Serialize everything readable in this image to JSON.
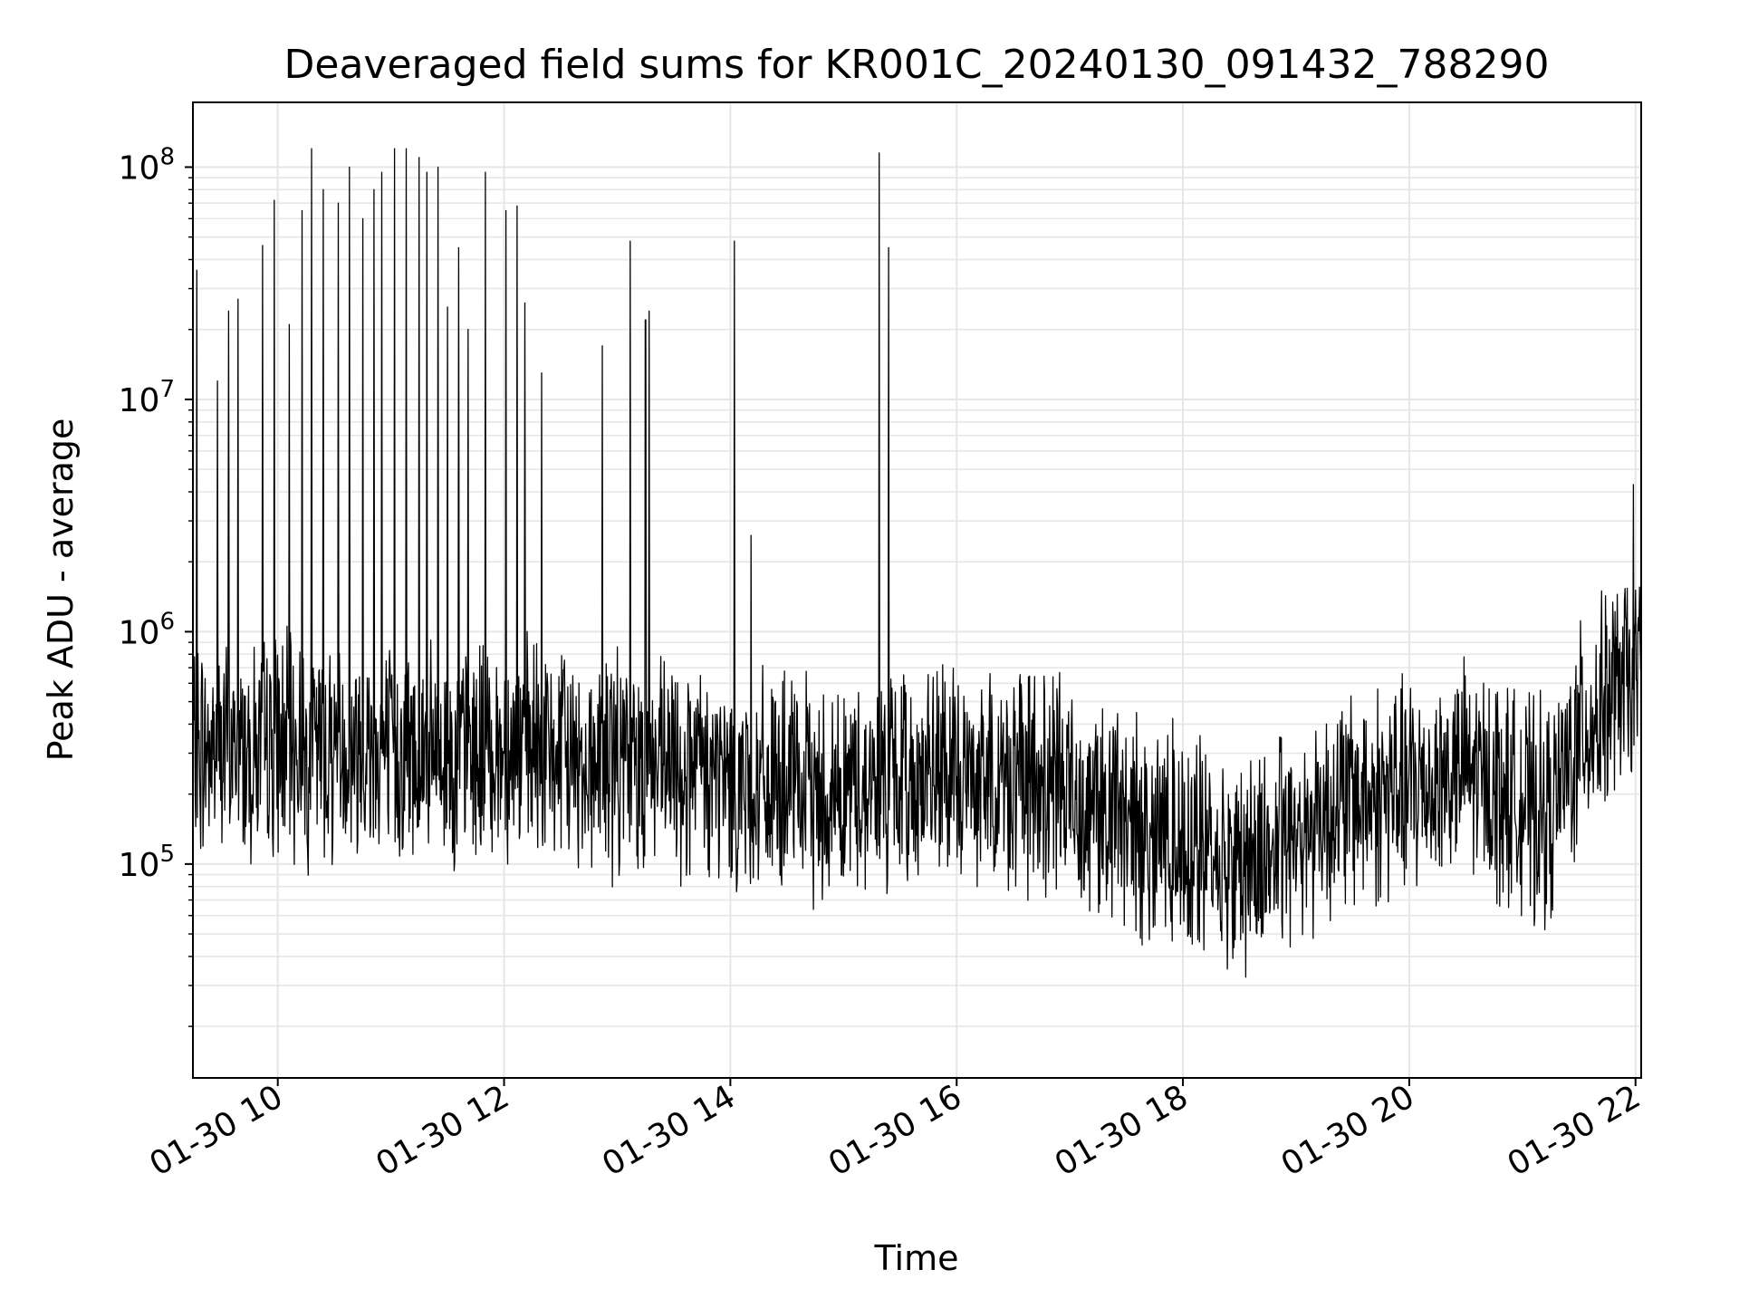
{
  "chart_data": {
    "type": "line",
    "title": "Deaveraged field sums for KR001C_20240130_091432_788290",
    "xlabel": "Time",
    "ylabel": "Peak ADU - average",
    "x_ticks": [
      "01-30 10",
      "01-30 12",
      "01-30 14",
      "01-30 16",
      "01-30 18",
      "01-30 20",
      "01-30 22"
    ],
    "y_ticks": [
      {
        "base": "10",
        "exp": "5",
        "value": 100000
      },
      {
        "base": "10",
        "exp": "6",
        "value": 1000000
      },
      {
        "base": "10",
        "exp": "7",
        "value": 10000000
      },
      {
        "base": "10",
        "exp": "8",
        "value": 100000000
      }
    ],
    "xlim": [
      "2024-01-30 09:15",
      "2024-01-30 22:03"
    ],
    "ylim": [
      12000,
      190000000
    ],
    "yscale": "log",
    "grid": true,
    "line_color": "#000000",
    "grid_color": "#e6e6e6",
    "series": [
      {
        "x": [
          "2024-01-30 09:15",
          "2024-01-30 09:30",
          "2024-01-30 09:45",
          "2024-01-30 10:00",
          "2024-01-30 10:15",
          "2024-01-30 10:30",
          "2024-01-30 10:45",
          "2024-01-30 11:00",
          "2024-01-30 11:15",
          "2024-01-30 11:30",
          "2024-01-30 11:45",
          "2024-01-30 12:00",
          "2024-01-30 12:15",
          "2024-01-30 12:30",
          "2024-01-30 12:45",
          "2024-01-30 13:00",
          "2024-01-30 13:15",
          "2024-01-30 13:30",
          "2024-01-30 13:45",
          "2024-01-30 14:00",
          "2024-01-30 14:15",
          "2024-01-30 14:30",
          "2024-01-30 14:45",
          "2024-01-30 15:00",
          "2024-01-30 15:15",
          "2024-01-30 15:30",
          "2024-01-30 15:45",
          "2024-01-30 16:00",
          "2024-01-30 16:15",
          "2024-01-30 16:30",
          "2024-01-30 16:45",
          "2024-01-30 17:00",
          "2024-01-30 17:15",
          "2024-01-30 17:30",
          "2024-01-30 17:45",
          "2024-01-30 18:00",
          "2024-01-30 18:15",
          "2024-01-30 18:30",
          "2024-01-30 18:45",
          "2024-01-30 19:00",
          "2024-01-30 19:15",
          "2024-01-30 19:30",
          "2024-01-30 19:45",
          "2024-01-30 20:00",
          "2024-01-30 20:15",
          "2024-01-30 20:30",
          "2024-01-30 20:45",
          "2024-01-30 21:00",
          "2024-01-30 21:15",
          "2024-01-30 21:30",
          "2024-01-30 21:45",
          "2024-01-30 22:00"
        ],
        "values": [
          300000,
          320000,
          310000,
          330000,
          300000,
          320000,
          310000,
          300000,
          290000,
          280000,
          300000,
          310000,
          300000,
          290000,
          280000,
          270000,
          260000,
          250000,
          240000,
          230000,
          220000,
          210000,
          200000,
          210000,
          220000,
          230000,
          240000,
          230000,
          240000,
          230000,
          220000,
          210000,
          180000,
          150000,
          140000,
          130000,
          110000,
          100000,
          110000,
          140000,
          170000,
          190000,
          200000,
          210000,
          230000,
          250000,
          220000,
          180000,
          160000,
          350000,
          500000,
          650000
        ]
      }
    ],
    "spikes": [
      {
        "x": "2024-01-30 09:17",
        "y": 36000000
      },
      {
        "x": "2024-01-30 09:28",
        "y": 12000000
      },
      {
        "x": "2024-01-30 09:34",
        "y": 24000000
      },
      {
        "x": "2024-01-30 09:39",
        "y": 27000000
      },
      {
        "x": "2024-01-30 09:52",
        "y": 46000000
      },
      {
        "x": "2024-01-30 09:58",
        "y": 72000000
      },
      {
        "x": "2024-01-30 10:06",
        "y": 21000000
      },
      {
        "x": "2024-01-30 10:13",
        "y": 65000000
      },
      {
        "x": "2024-01-30 10:18",
        "y": 120000000
      },
      {
        "x": "2024-01-30 10:24",
        "y": 80000000
      },
      {
        "x": "2024-01-30 10:32",
        "y": 70000000
      },
      {
        "x": "2024-01-30 10:38",
        "y": 100000000
      },
      {
        "x": "2024-01-30 10:45",
        "y": 60000000
      },
      {
        "x": "2024-01-30 10:51",
        "y": 80000000
      },
      {
        "x": "2024-01-30 10:55",
        "y": 95000000
      },
      {
        "x": "2024-01-30 11:02",
        "y": 120000000
      },
      {
        "x": "2024-01-30 11:08",
        "y": 120000000
      },
      {
        "x": "2024-01-30 11:15",
        "y": 110000000
      },
      {
        "x": "2024-01-30 11:19",
        "y": 95000000
      },
      {
        "x": "2024-01-30 11:25",
        "y": 100000000
      },
      {
        "x": "2024-01-30 11:30",
        "y": 25000000
      },
      {
        "x": "2024-01-30 11:36",
        "y": 45000000
      },
      {
        "x": "2024-01-30 11:41",
        "y": 20000000
      },
      {
        "x": "2024-01-30 11:50",
        "y": 95000000
      },
      {
        "x": "2024-01-30 12:01",
        "y": 65000000
      },
      {
        "x": "2024-01-30 12:07",
        "y": 68000000
      },
      {
        "x": "2024-01-30 12:11",
        "y": 26000000
      },
      {
        "x": "2024-01-30 12:20",
        "y": 13000000
      },
      {
        "x": "2024-01-30 12:52",
        "y": 17000000
      },
      {
        "x": "2024-01-30 13:07",
        "y": 48000000
      },
      {
        "x": "2024-01-30 13:15",
        "y": 22000000
      },
      {
        "x": "2024-01-30 13:17",
        "y": 24000000
      },
      {
        "x": "2024-01-30 14:02",
        "y": 48000000
      },
      {
        "x": "2024-01-30 14:11",
        "y": 2600000
      },
      {
        "x": "2024-01-30 15:19",
        "y": 115000000
      },
      {
        "x": "2024-01-30 15:24",
        "y": 45000000
      },
      {
        "x": "2024-01-30 21:59",
        "y": 4300000
      }
    ]
  }
}
